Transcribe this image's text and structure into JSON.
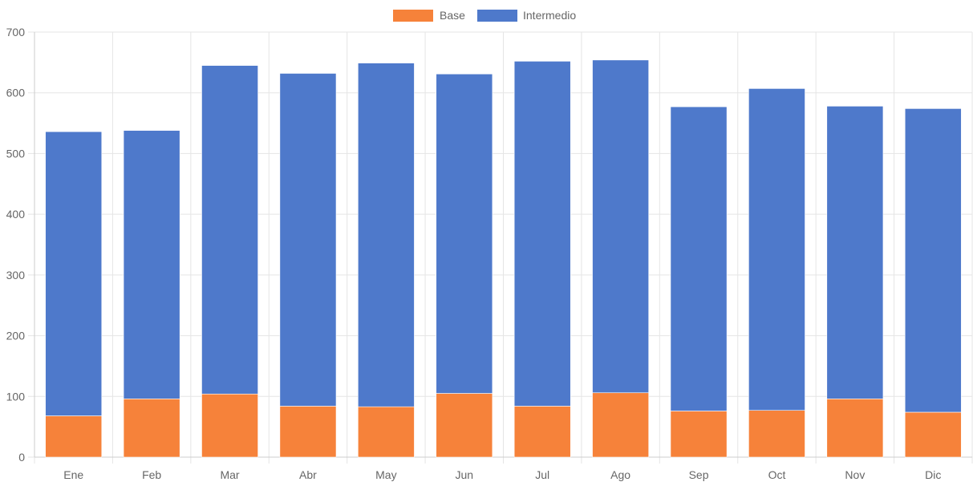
{
  "chart_data": {
    "type": "bar",
    "stacked": true,
    "categories": [
      "Ene",
      "Feb",
      "Mar",
      "Abr",
      "May",
      "Jun",
      "Jul",
      "Ago",
      "Sep",
      "Oct",
      "Nov",
      "Dic"
    ],
    "series": [
      {
        "name": "Base",
        "color": "#f6823a",
        "values": [
          68,
          96,
          104,
          84,
          83,
          105,
          84,
          106,
          76,
          77,
          96,
          74
        ]
      },
      {
        "name": "Intermedio",
        "color": "#4e79cb",
        "values": [
          468,
          442,
          541,
          548,
          566,
          526,
          568,
          548,
          501,
          530,
          482,
          500
        ]
      }
    ],
    "ylim": [
      0,
      700
    ],
    "yticks": [
      "0",
      "100",
      "200",
      "300",
      "400",
      "500",
      "600",
      "700"
    ],
    "grid": true,
    "legend_position": "top"
  }
}
